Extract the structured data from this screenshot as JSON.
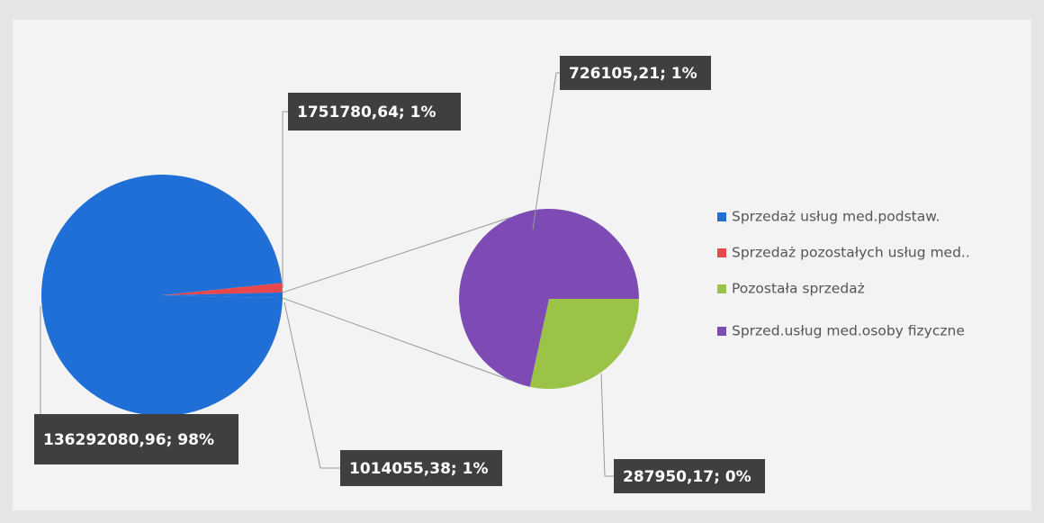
{
  "chart_data": {
    "type": "pie",
    "categories": [
      "Sprzedaż usług med.podstaw.",
      "Sprzedaż pozostałych usług med..",
      "Pozostała sprzedaż",
      "Sprzed.usług med.osoby fizyczne"
    ],
    "colors": [
      "#1f6fd6",
      "#e8474c",
      "#9bc348",
      "#7e4bb4"
    ],
    "values": [
      136292080.96,
      1751780.64,
      287950.17,
      726105.21
    ],
    "value_labels": [
      "136292080,96; 98%",
      "1751780,64; 1%",
      "287950,17; 0%",
      "726105,21; 1%"
    ],
    "other_value": 1014055.38,
    "other_label": "1014055,38; 1%"
  }
}
